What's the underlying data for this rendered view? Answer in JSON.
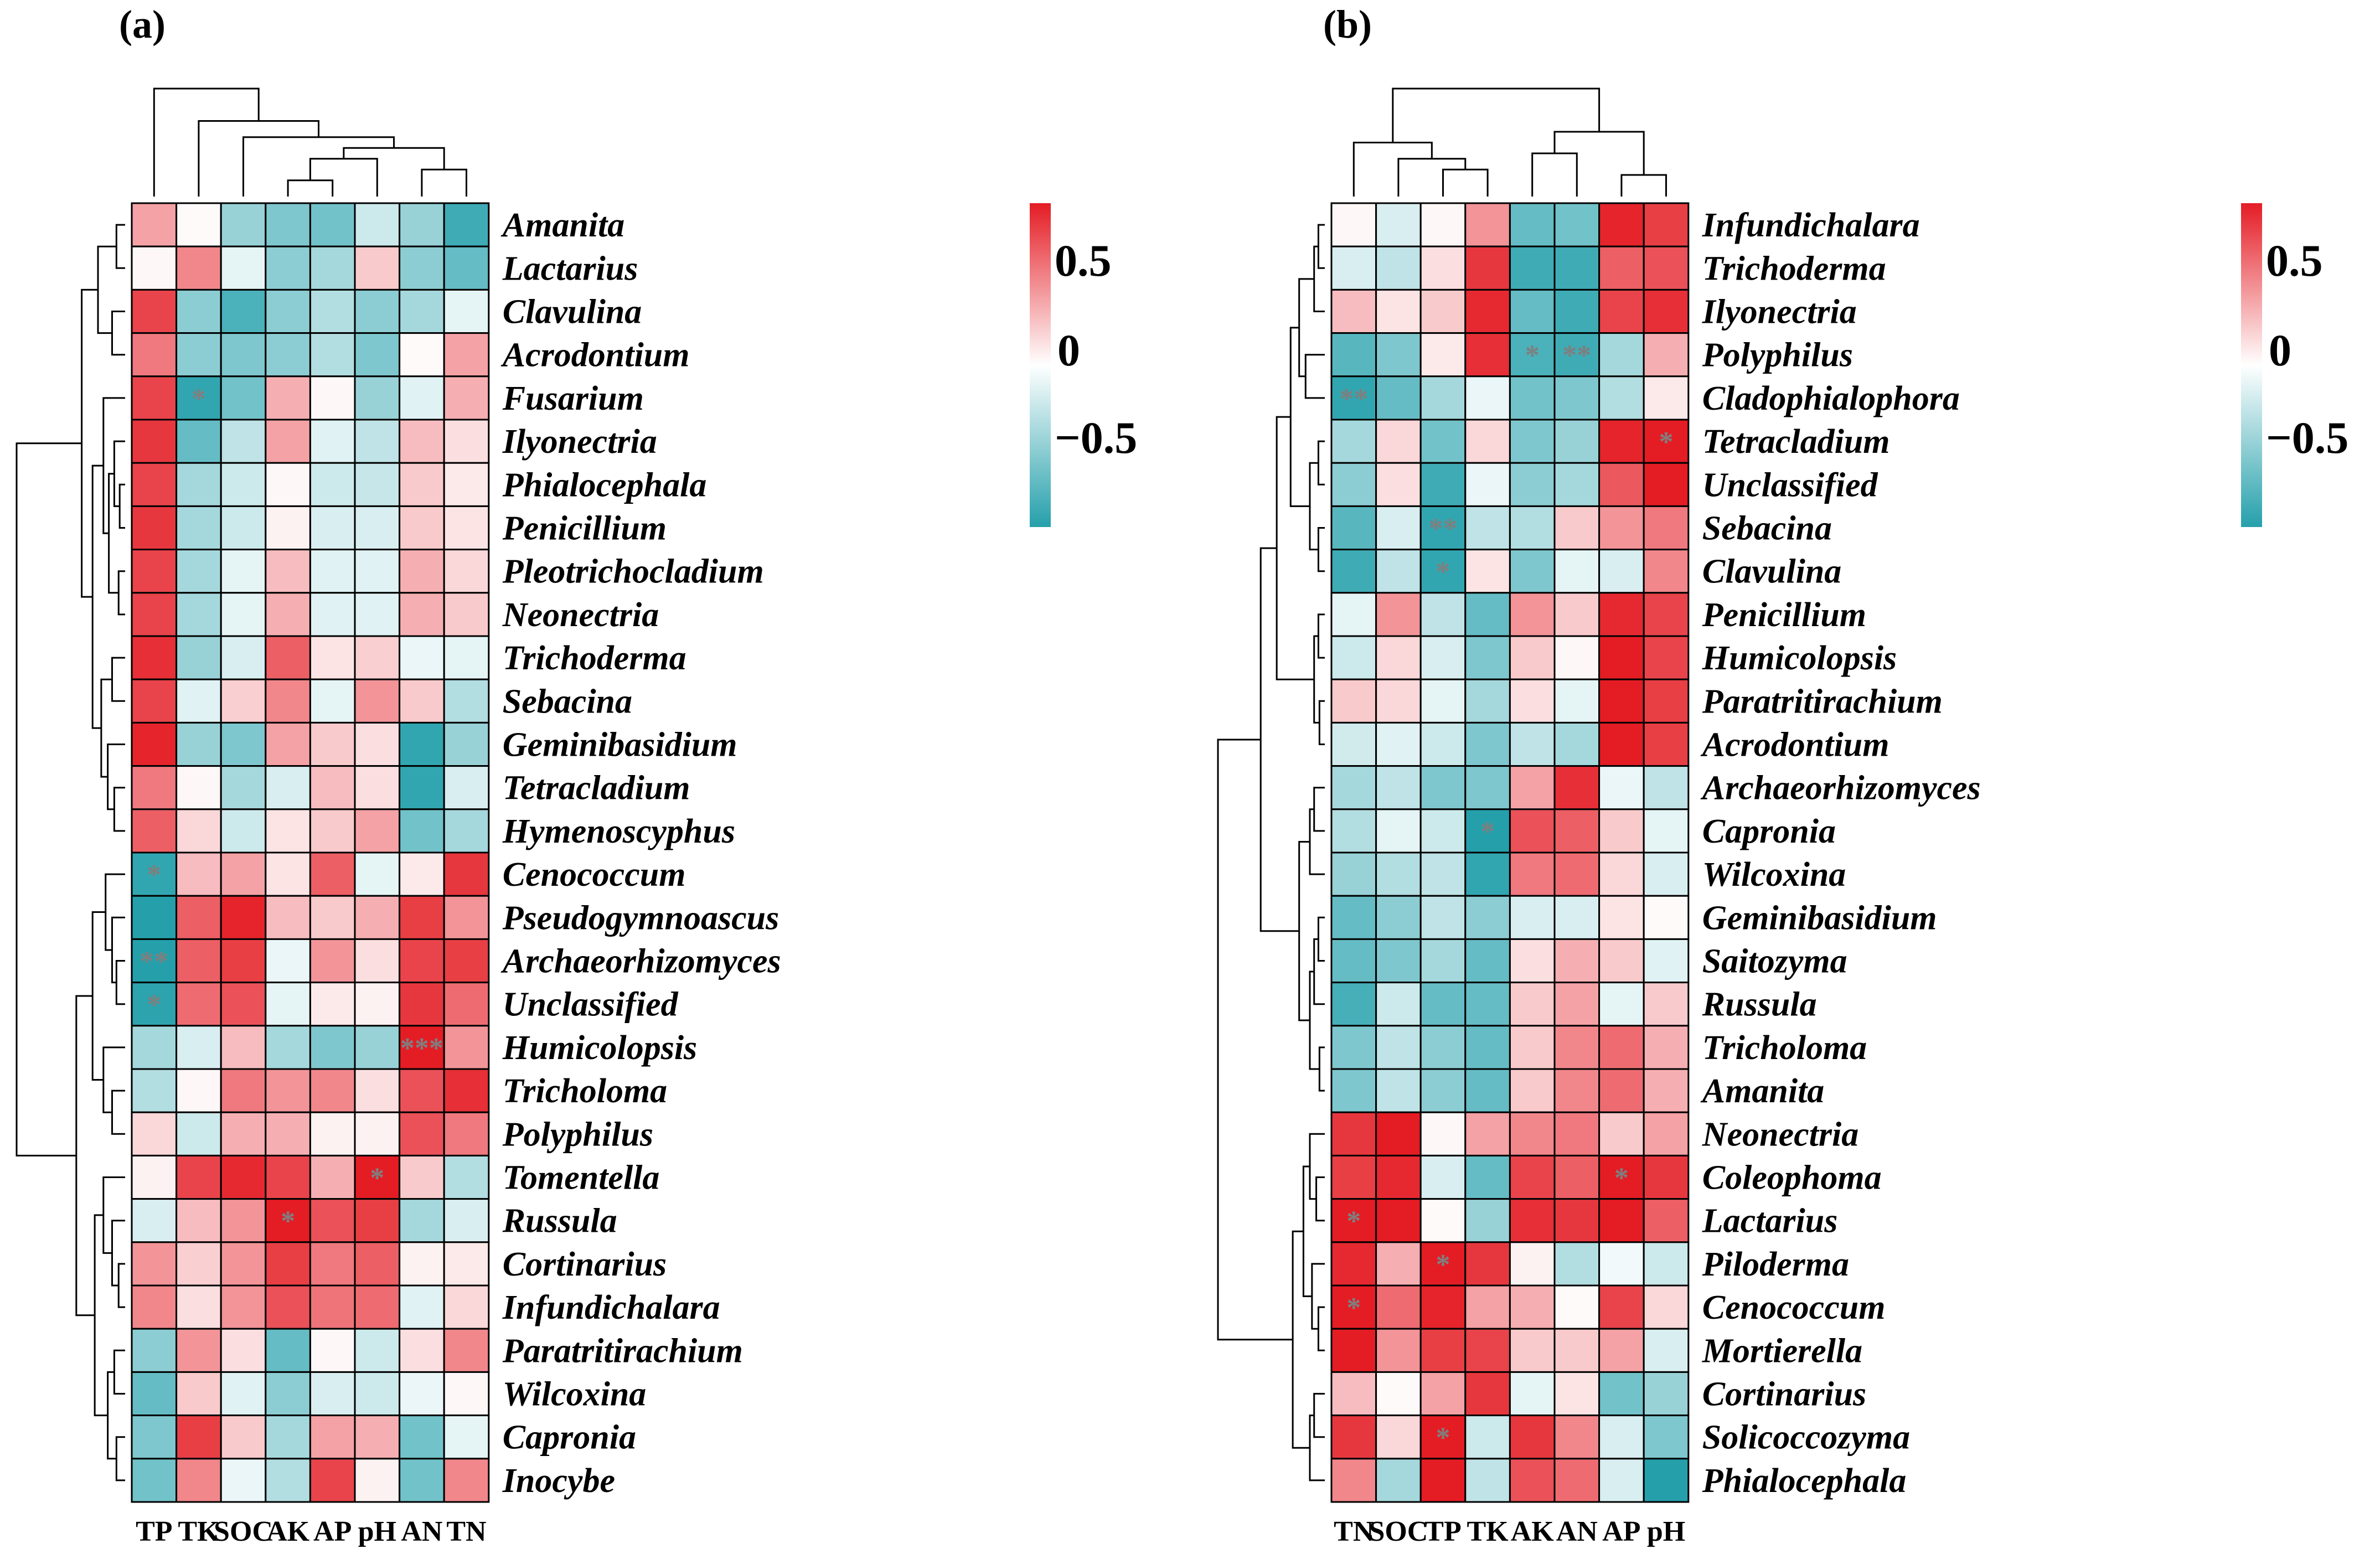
{
  "colors": {
    "low": "#25a0ab",
    "mid": "#ffffff",
    "high": "#e41c24"
  },
  "chart_data": [
    {
      "type": "heatmap",
      "title": "(a)",
      "columns": [
        "TP",
        "TK",
        "SOC",
        "AK",
        "AP",
        "pH",
        "AN",
        "TN"
      ],
      "rows": [
        "Amanita",
        "Lactarius",
        "Clavulina",
        "Acrodontium",
        "Fusarium",
        "Ilyonectria",
        "Phialocephala",
        "Penicillium",
        "Pleotrichocladium",
        "Neonectria",
        "Trichoderma",
        "Sebacina",
        "Geminibasidium",
        "Tetracladium",
        "Hymenoscyphus",
        "Cenococcum",
        "Pseudogymnoascus",
        "Archaeorhizomyces",
        "Unclassified",
        "Humicolopsis",
        "Tricholoma",
        "Polyphilus",
        "Tomentella",
        "Russula",
        "Cortinarius",
        "Infundichalara",
        "Paratritirachium",
        "Wilcoxina",
        "Capronia",
        "Inocybe"
      ],
      "values": [
        [
          0.35,
          0.02,
          -0.4,
          -0.5,
          -0.55,
          -0.2,
          -0.4,
          -0.75
        ],
        [
          0.03,
          0.45,
          -0.1,
          -0.45,
          -0.35,
          0.2,
          -0.45,
          -0.6
        ],
        [
          0.7,
          -0.45,
          -0.7,
          -0.45,
          -0.3,
          -0.45,
          -0.35,
          -0.1
        ],
        [
          0.5,
          -0.45,
          -0.5,
          -0.45,
          -0.3,
          -0.5,
          0.02,
          0.35
        ],
        [
          0.7,
          -0.8,
          -0.55,
          0.3,
          0.03,
          -0.4,
          -0.12,
          0.3
        ],
        [
          0.75,
          -0.6,
          -0.25,
          0.35,
          -0.12,
          -0.25,
          0.25,
          0.12
        ],
        [
          0.7,
          -0.35,
          -0.2,
          0.03,
          -0.2,
          -0.22,
          0.2,
          0.08
        ],
        [
          0.75,
          -0.35,
          -0.2,
          0.05,
          -0.15,
          -0.15,
          0.2,
          0.1
        ],
        [
          0.7,
          -0.35,
          -0.1,
          0.25,
          -0.12,
          -0.12,
          0.3,
          0.15
        ],
        [
          0.7,
          -0.35,
          -0.1,
          0.3,
          -0.12,
          -0.12,
          0.3,
          0.2
        ],
        [
          0.78,
          -0.4,
          -0.15,
          0.6,
          0.1,
          0.18,
          -0.08,
          -0.1
        ],
        [
          0.7,
          -0.12,
          0.18,
          0.45,
          -0.1,
          0.4,
          0.2,
          -0.3
        ],
        [
          0.82,
          -0.4,
          -0.5,
          0.35,
          0.2,
          0.12,
          -0.8,
          -0.4
        ],
        [
          0.5,
          0.03,
          -0.35,
          -0.15,
          0.25,
          0.12,
          -0.8,
          -0.15
        ],
        [
          0.6,
          0.15,
          -0.2,
          0.1,
          0.2,
          0.35,
          -0.55,
          -0.35
        ],
        [
          -0.8,
          0.25,
          0.35,
          0.1,
          0.6,
          -0.1,
          0.08,
          0.75
        ],
        [
          -0.85,
          0.6,
          0.82,
          0.25,
          0.2,
          0.3,
          0.72,
          0.4
        ],
        [
          -0.85,
          0.6,
          0.72,
          -0.08,
          0.4,
          0.12,
          0.7,
          0.72
        ],
        [
          -0.82,
          0.55,
          0.65,
          -0.1,
          0.08,
          0.05,
          0.75,
          0.55
        ],
        [
          -0.35,
          -0.15,
          0.25,
          -0.35,
          -0.5,
          -0.4,
          0.9,
          0.4
        ],
        [
          -0.3,
          0.03,
          0.5,
          0.4,
          0.45,
          0.12,
          0.65,
          0.78
        ],
        [
          0.15,
          -0.2,
          0.3,
          0.3,
          0.05,
          0.05,
          0.65,
          0.5
        ],
        [
          0.05,
          0.7,
          0.8,
          0.7,
          0.3,
          0.9,
          0.2,
          -0.3
        ],
        [
          -0.15,
          0.25,
          0.4,
          0.9,
          0.65,
          0.72,
          -0.35,
          -0.15
        ],
        [
          0.4,
          0.18,
          0.4,
          0.72,
          0.5,
          0.6,
          0.05,
          0.08
        ],
        [
          0.45,
          0.12,
          0.4,
          0.65,
          0.52,
          0.55,
          -0.12,
          0.15
        ],
        [
          -0.45,
          0.4,
          0.12,
          -0.6,
          0.03,
          -0.2,
          0.12,
          0.45
        ],
        [
          -0.6,
          0.2,
          -0.12,
          -0.45,
          -0.15,
          -0.2,
          -0.08,
          0.03
        ],
        [
          -0.5,
          0.72,
          0.2,
          -0.35,
          0.35,
          0.3,
          -0.55,
          -0.1
        ],
        [
          -0.55,
          0.45,
          -0.08,
          -0.3,
          0.7,
          0.05,
          -0.55,
          0.45
        ]
      ],
      "significance": [
        {
          "row": "Fusarium",
          "col": "TK",
          "mark": "*"
        },
        {
          "row": "Cenococcum",
          "col": "TP",
          "mark": "*"
        },
        {
          "row": "Archaeorhizomyces",
          "col": "TP",
          "mark": "**"
        },
        {
          "row": "Unclassified",
          "col": "TP",
          "mark": "*"
        },
        {
          "row": "Humicolopsis",
          "col": "AN",
          "mark": "***"
        },
        {
          "row": "Tomentella",
          "col": "pH",
          "mark": "*"
        },
        {
          "row": "Russula",
          "col": "AK",
          "mark": "*"
        }
      ],
      "legend_ticks": [
        "0.5",
        "0",
        "−0.5"
      ],
      "color_range": [
        -0.85,
        0.85
      ]
    },
    {
      "type": "heatmap",
      "title": "(b)",
      "columns": [
        "TN",
        "SOC",
        "TP",
        "TK",
        "AK",
        "AN",
        "AP",
        "pH"
      ],
      "rows": [
        "Infundichalara",
        "Trichoderma",
        "Ilyonectria",
        "Polyphilus",
        "Cladophialophora",
        "Tetracladium",
        "Unclassified",
        "Sebacina",
        "Clavulina",
        "Penicillium",
        "Humicolopsis",
        "Paratritirachium",
        "Acrodontium",
        "Archaeorhizomyces",
        "Capronia",
        "Wilcoxina",
        "Geminibasidium",
        "Saitozyma",
        "Russula",
        "Tricholoma",
        "Amanita",
        "Neonectria",
        "Coleophoma",
        "Lactarius",
        "Piloderma",
        "Cenococcum",
        "Mortierella",
        "Cortinarius",
        "Solicoccozyma",
        "Phialocephala"
      ],
      "values": [
        [
          0.03,
          -0.15,
          0.03,
          0.4,
          -0.6,
          -0.55,
          0.82,
          0.72
        ],
        [
          -0.15,
          -0.25,
          0.12,
          0.75,
          -0.75,
          -0.75,
          0.6,
          0.65
        ],
        [
          0.25,
          0.1,
          0.2,
          0.8,
          -0.6,
          -0.75,
          0.7,
          0.78
        ],
        [
          -0.65,
          -0.5,
          0.08,
          0.78,
          -0.7,
          -0.75,
          -0.35,
          0.3
        ],
        [
          -0.8,
          -0.6,
          -0.35,
          -0.08,
          -0.55,
          -0.5,
          -0.3,
          0.08
        ],
        [
          -0.35,
          0.15,
          -0.55,
          0.15,
          -0.5,
          -0.4,
          0.82,
          0.92
        ],
        [
          -0.45,
          0.12,
          -0.75,
          -0.08,
          -0.45,
          -0.35,
          0.62,
          0.92
        ],
        [
          -0.65,
          -0.15,
          -0.8,
          -0.25,
          -0.3,
          0.2,
          0.4,
          0.5
        ],
        [
          -0.75,
          -0.25,
          -0.8,
          0.1,
          -0.5,
          -0.1,
          -0.15,
          0.45
        ],
        [
          -0.1,
          0.4,
          -0.25,
          -0.6,
          0.4,
          0.2,
          0.8,
          0.7
        ],
        [
          -0.2,
          0.15,
          -0.15,
          -0.5,
          0.2,
          0.03,
          0.85,
          0.7
        ],
        [
          0.2,
          0.15,
          -0.1,
          -0.35,
          0.12,
          -0.1,
          0.88,
          0.72
        ],
        [
          -0.18,
          -0.12,
          -0.2,
          -0.5,
          -0.25,
          -0.35,
          0.85,
          0.72
        ],
        [
          -0.35,
          -0.25,
          -0.5,
          -0.5,
          0.35,
          0.78,
          -0.08,
          -0.25
        ],
        [
          -0.3,
          -0.1,
          -0.2,
          -0.85,
          0.65,
          0.6,
          0.2,
          -0.1
        ],
        [
          -0.4,
          -0.3,
          -0.25,
          -0.8,
          0.5,
          0.55,
          0.15,
          -0.15
        ],
        [
          -0.6,
          -0.45,
          -0.25,
          -0.45,
          -0.15,
          -0.15,
          0.1,
          0.02
        ],
        [
          -0.6,
          -0.5,
          -0.35,
          -0.6,
          0.12,
          0.3,
          0.2,
          -0.12
        ],
        [
          -0.72,
          -0.2,
          -0.6,
          -0.6,
          0.2,
          0.35,
          -0.1,
          0.2
        ],
        [
          -0.5,
          -0.25,
          -0.45,
          -0.6,
          0.2,
          0.45,
          0.55,
          0.3
        ],
        [
          -0.5,
          -0.25,
          -0.45,
          -0.6,
          0.2,
          0.45,
          0.55,
          0.3
        ],
        [
          0.75,
          0.85,
          0.03,
          0.35,
          0.45,
          0.5,
          0.2,
          0.35
        ],
        [
          0.72,
          0.8,
          -0.15,
          -0.6,
          0.7,
          0.6,
          0.9,
          0.75
        ],
        [
          0.85,
          0.88,
          0.02,
          -0.4,
          0.78,
          0.75,
          0.92,
          0.6
        ],
        [
          0.8,
          0.3,
          0.95,
          0.75,
          0.05,
          -0.3,
          -0.05,
          -0.2
        ],
        [
          0.9,
          0.55,
          0.82,
          0.35,
          0.3,
          0.02,
          0.7,
          0.15
        ],
        [
          0.88,
          0.4,
          0.72,
          0.7,
          0.2,
          0.2,
          0.35,
          -0.15
        ],
        [
          0.25,
          0.02,
          0.35,
          0.75,
          -0.1,
          0.1,
          -0.55,
          -0.4
        ],
        [
          0.75,
          0.15,
          0.95,
          -0.2,
          0.75,
          0.45,
          -0.15,
          -0.5
        ],
        [
          0.45,
          -0.35,
          0.85,
          -0.25,
          0.65,
          0.55,
          -0.15,
          -0.85
        ]
      ],
      "significance": [
        {
          "row": "Polyphilus",
          "col": "AK",
          "mark": "*"
        },
        {
          "row": "Polyphilus",
          "col": "AN",
          "mark": "**"
        },
        {
          "row": "Cladophialophora",
          "col": "TN",
          "mark": "**"
        },
        {
          "row": "Tetracladium",
          "col": "pH",
          "mark": "*"
        },
        {
          "row": "Sebacina",
          "col": "TP",
          "mark": "**"
        },
        {
          "row": "Clavulina",
          "col": "TP",
          "mark": "*"
        },
        {
          "row": "Capronia",
          "col": "TK",
          "mark": "*"
        },
        {
          "row": "Coleophoma",
          "col": "AP",
          "mark": "*"
        },
        {
          "row": "Lactarius",
          "col": "TN",
          "mark": "*"
        },
        {
          "row": "Piloderma",
          "col": "TP",
          "mark": "*"
        },
        {
          "row": "Cenococcum",
          "col": "TN",
          "mark": "*"
        },
        {
          "row": "Solicoccozyma",
          "col": "TP",
          "mark": "*"
        }
      ],
      "legend_ticks": [
        "0.5",
        "0",
        "−0.5"
      ],
      "color_range": [
        -0.85,
        0.85
      ]
    }
  ]
}
